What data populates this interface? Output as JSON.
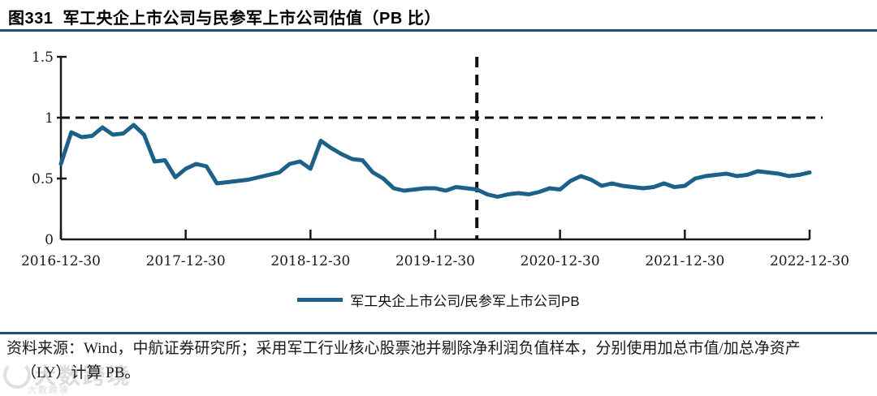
{
  "title": "图331  军工央企上市公司与民参军上市公司估值（PB 比）",
  "colors": {
    "line": "#1d6189",
    "rule": "#1f4e79",
    "dash": "#111111",
    "axis": "#1a1a1a",
    "tick_text": "#1a1a1a",
    "watermark": "#dcdcdc"
  },
  "chart_data": {
    "type": "line",
    "title": "",
    "xlabel": "",
    "ylabel": "",
    "ylim": [
      0,
      1.5
    ],
    "grid": false,
    "legend_position": "bottom",
    "x_start": "2016-12-30",
    "x_end": "2022-12-30",
    "x_frequency": "monthly",
    "x_tick_labels": [
      "2016-12-30",
      "2017-12-30",
      "2018-12-30",
      "2019-12-30",
      "2020-12-30",
      "2021-12-30",
      "2022-12-30"
    ],
    "y_tick_labels": [
      "0",
      "0.5",
      "1",
      "1.5"
    ],
    "hline": {
      "value": 1.0,
      "style": "dashed"
    },
    "vline": {
      "month_index": 40,
      "approx_date": "2020-04-30",
      "style": "dashed"
    },
    "series": [
      {
        "name": "军工央企上市公司/民参军上市公司PB",
        "values": [
          0.62,
          0.88,
          0.84,
          0.85,
          0.92,
          0.86,
          0.87,
          0.94,
          0.86,
          0.64,
          0.65,
          0.51,
          0.58,
          0.62,
          0.6,
          0.46,
          0.47,
          0.48,
          0.49,
          0.51,
          0.53,
          0.55,
          0.62,
          0.64,
          0.58,
          0.81,
          0.75,
          0.7,
          0.66,
          0.65,
          0.55,
          0.5,
          0.42,
          0.4,
          0.41,
          0.42,
          0.42,
          0.4,
          0.43,
          0.42,
          0.41,
          0.37,
          0.35,
          0.37,
          0.38,
          0.37,
          0.39,
          0.42,
          0.41,
          0.48,
          0.52,
          0.49,
          0.44,
          0.46,
          0.44,
          0.43,
          0.42,
          0.43,
          0.46,
          0.43,
          0.44,
          0.5,
          0.52,
          0.53,
          0.54,
          0.52,
          0.53,
          0.56,
          0.55,
          0.54,
          0.52,
          0.53,
          0.55
        ]
      }
    ]
  },
  "legend": {
    "label": "军工央企上市公司/民参军上市公司PB"
  },
  "footer": {
    "line1": "资料来源：Wind，中航证券研究所；采用军工行业核心股票池并剔除净利润负值样本，分别使用加总市值/加总净资产",
    "line2": "（LY）计算 PB。"
  },
  "watermark": {
    "text": "大数跨境"
  }
}
